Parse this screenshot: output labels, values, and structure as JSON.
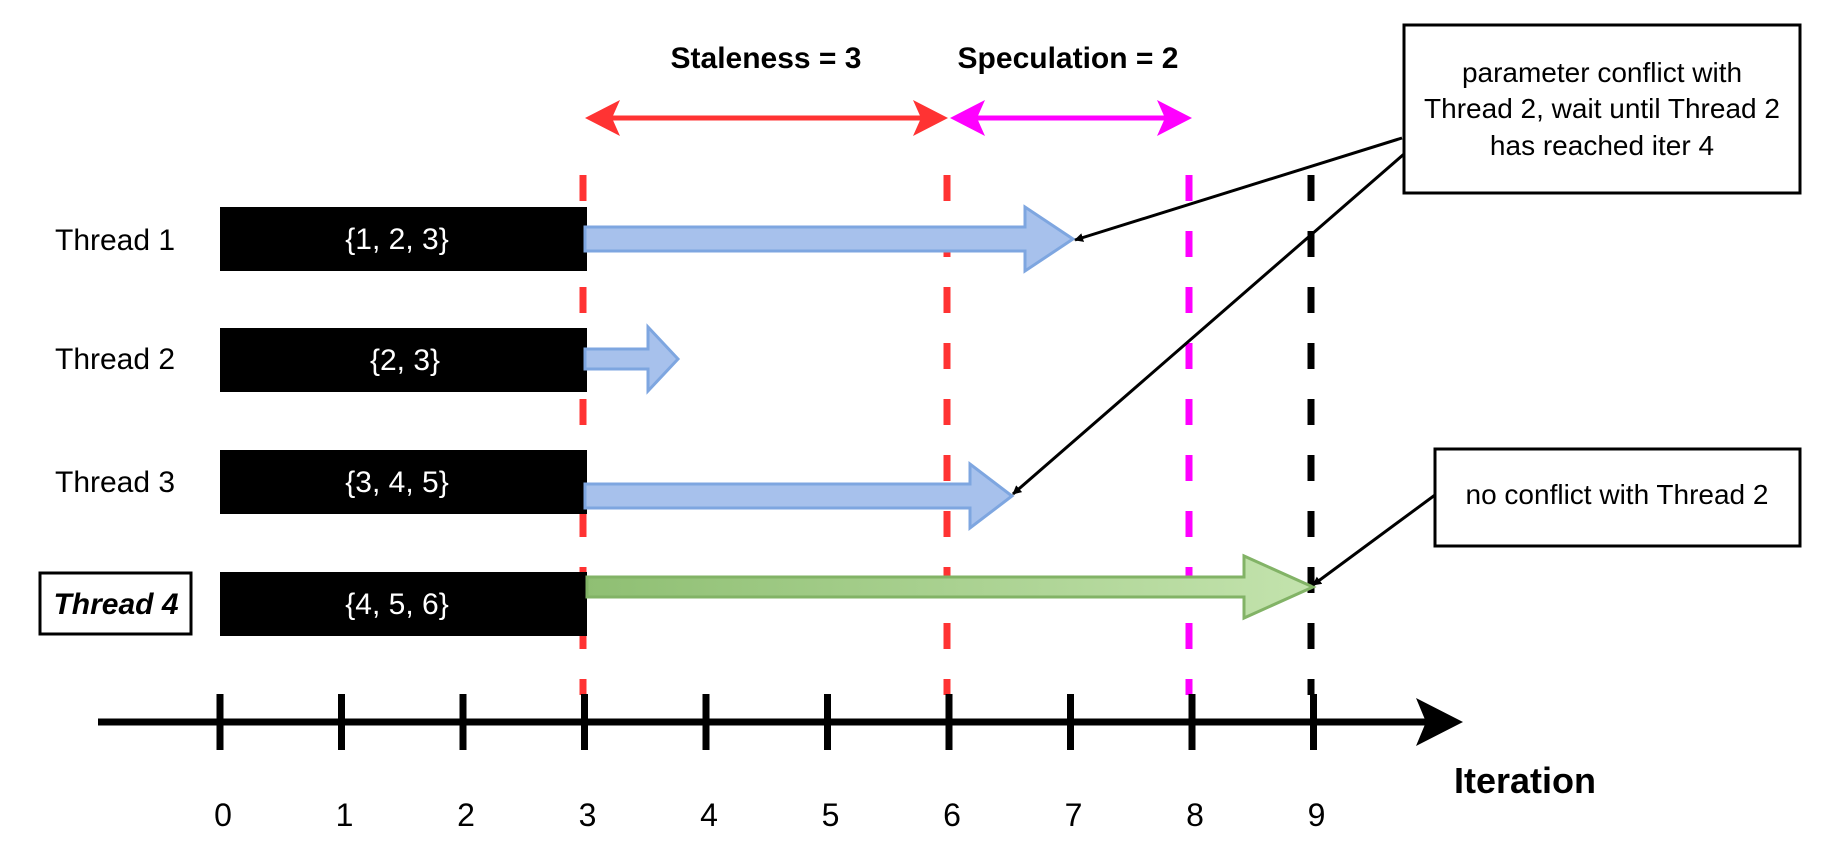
{
  "threads": [
    {
      "name": "Thread 1",
      "params": "{1, 2, 3}",
      "emphasized": false
    },
    {
      "name": "Thread 2",
      "params": "{2, 3}",
      "emphasized": false
    },
    {
      "name": "Thread 3",
      "params": "{3, 4, 5}",
      "emphasized": false
    },
    {
      "name": "Thread 4",
      "params": "{4, 5, 6}",
      "emphasized": true
    }
  ],
  "axis": {
    "title": "Iteration",
    "ticks": [
      "0",
      "1",
      "2",
      "3",
      "4",
      "5",
      "6",
      "7",
      "8",
      "9"
    ]
  },
  "headers": {
    "staleness": "Staleness = 3",
    "speculation": "Speculation = 2"
  },
  "notes": {
    "conflict_lines": [
      "parameter conflict with",
      "Thread 2, wait until Thread 2",
      "has reached iter 4"
    ],
    "no_conflict": "no conflict with Thread 2"
  },
  "colors": {
    "block": "#000000",
    "staleness": "#ff3333",
    "speculation": "#ff00ff",
    "blue_arrow_fill": "#a7c1ec",
    "blue_arrow_stroke": "#7ea6e0",
    "green_arrow_fill": "#a9d08e",
    "green_arrow_stroke": "#82b366"
  }
}
